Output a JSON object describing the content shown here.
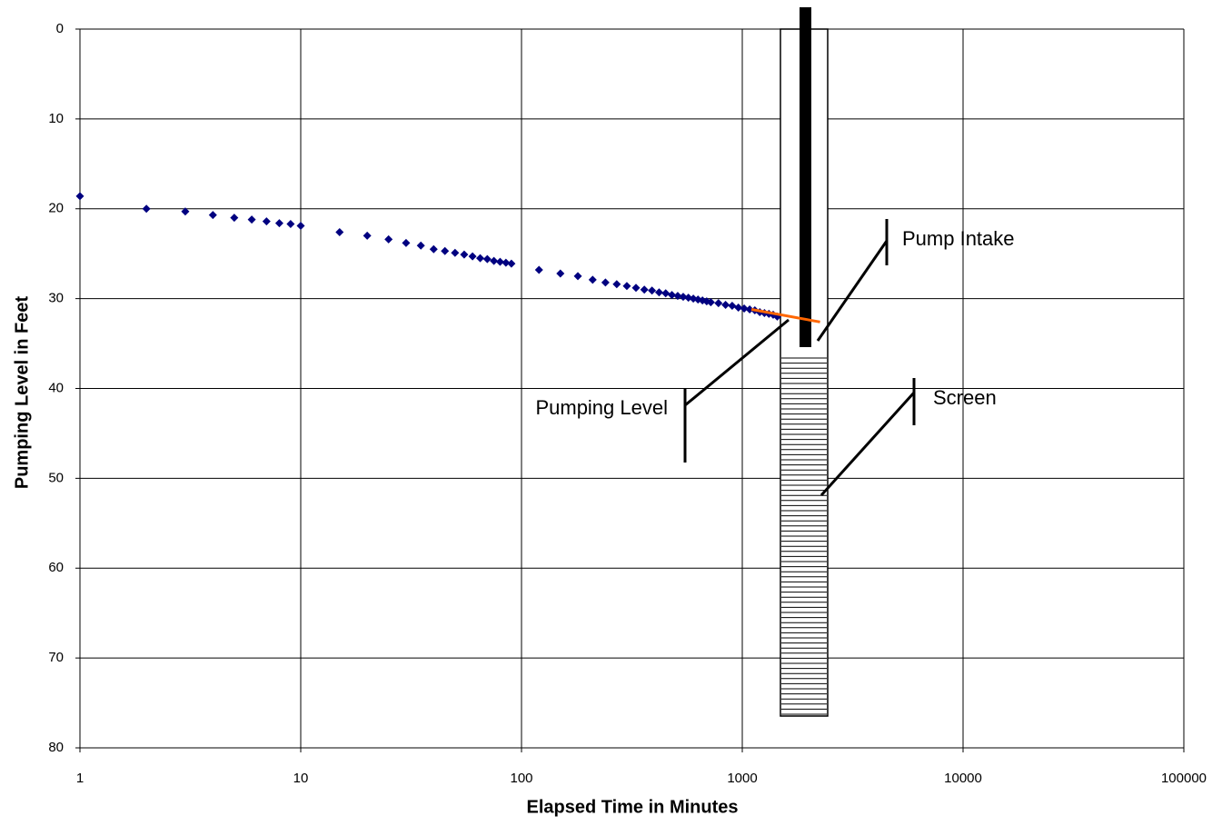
{
  "chart_data": {
    "type": "scatter",
    "xlabel": "Elapsed Time in Minutes",
    "ylabel": "Pumping Level in Feet",
    "xscale": "log",
    "y_inverted": true,
    "grid": true,
    "xlim": [
      1,
      100000
    ],
    "xticks": [
      1,
      10,
      100,
      1000,
      10000,
      100000
    ],
    "ylim": [
      0,
      80
    ],
    "yticks": [
      0,
      10,
      20,
      30,
      40,
      50,
      60,
      70,
      80
    ],
    "series": [
      {
        "type": "scatter",
        "color": "#000080",
        "x": [
          1,
          2,
          3,
          4,
          5,
          6,
          7,
          8,
          9,
          10,
          15,
          20,
          25,
          30,
          35,
          40,
          45,
          50,
          55,
          60,
          65,
          70,
          75,
          80,
          85,
          90,
          120,
          150,
          180,
          210,
          240,
          270,
          300,
          330,
          360,
          390,
          420,
          450,
          480,
          510,
          540,
          570,
          600,
          630,
          660,
          690,
          720,
          780,
          840,
          900,
          960,
          1020,
          1080,
          1140,
          1200,
          1260,
          1320,
          1380,
          1440
        ],
        "values": [
          18.6,
          20,
          20.3,
          20.7,
          21,
          21.2,
          21.4,
          21.6,
          21.7,
          21.9,
          22.6,
          23,
          23.4,
          23.8,
          24.1,
          24.5,
          24.7,
          24.9,
          25.1,
          25.3,
          25.5,
          25.6,
          25.8,
          25.9,
          26,
          26.1,
          26.8,
          27.2,
          27.5,
          27.9,
          28.2,
          28.4,
          28.6,
          28.8,
          29,
          29.1,
          29.3,
          29.4,
          29.6,
          29.7,
          29.8,
          29.9,
          30,
          30.1,
          30.2,
          30.3,
          30.4,
          30.5,
          30.7,
          30.8,
          31,
          31.1,
          31.2,
          31.3,
          31.5,
          31.6,
          31.7,
          31.8,
          32
        ]
      },
      {
        "type": "line",
        "color": "#ff6600",
        "x": [
          1100,
          2250
        ],
        "values": [
          31.2,
          32.6
        ]
      }
    ],
    "annotations": [
      "Pump Intake",
      "Screen",
      "Pumping Level"
    ]
  }
}
